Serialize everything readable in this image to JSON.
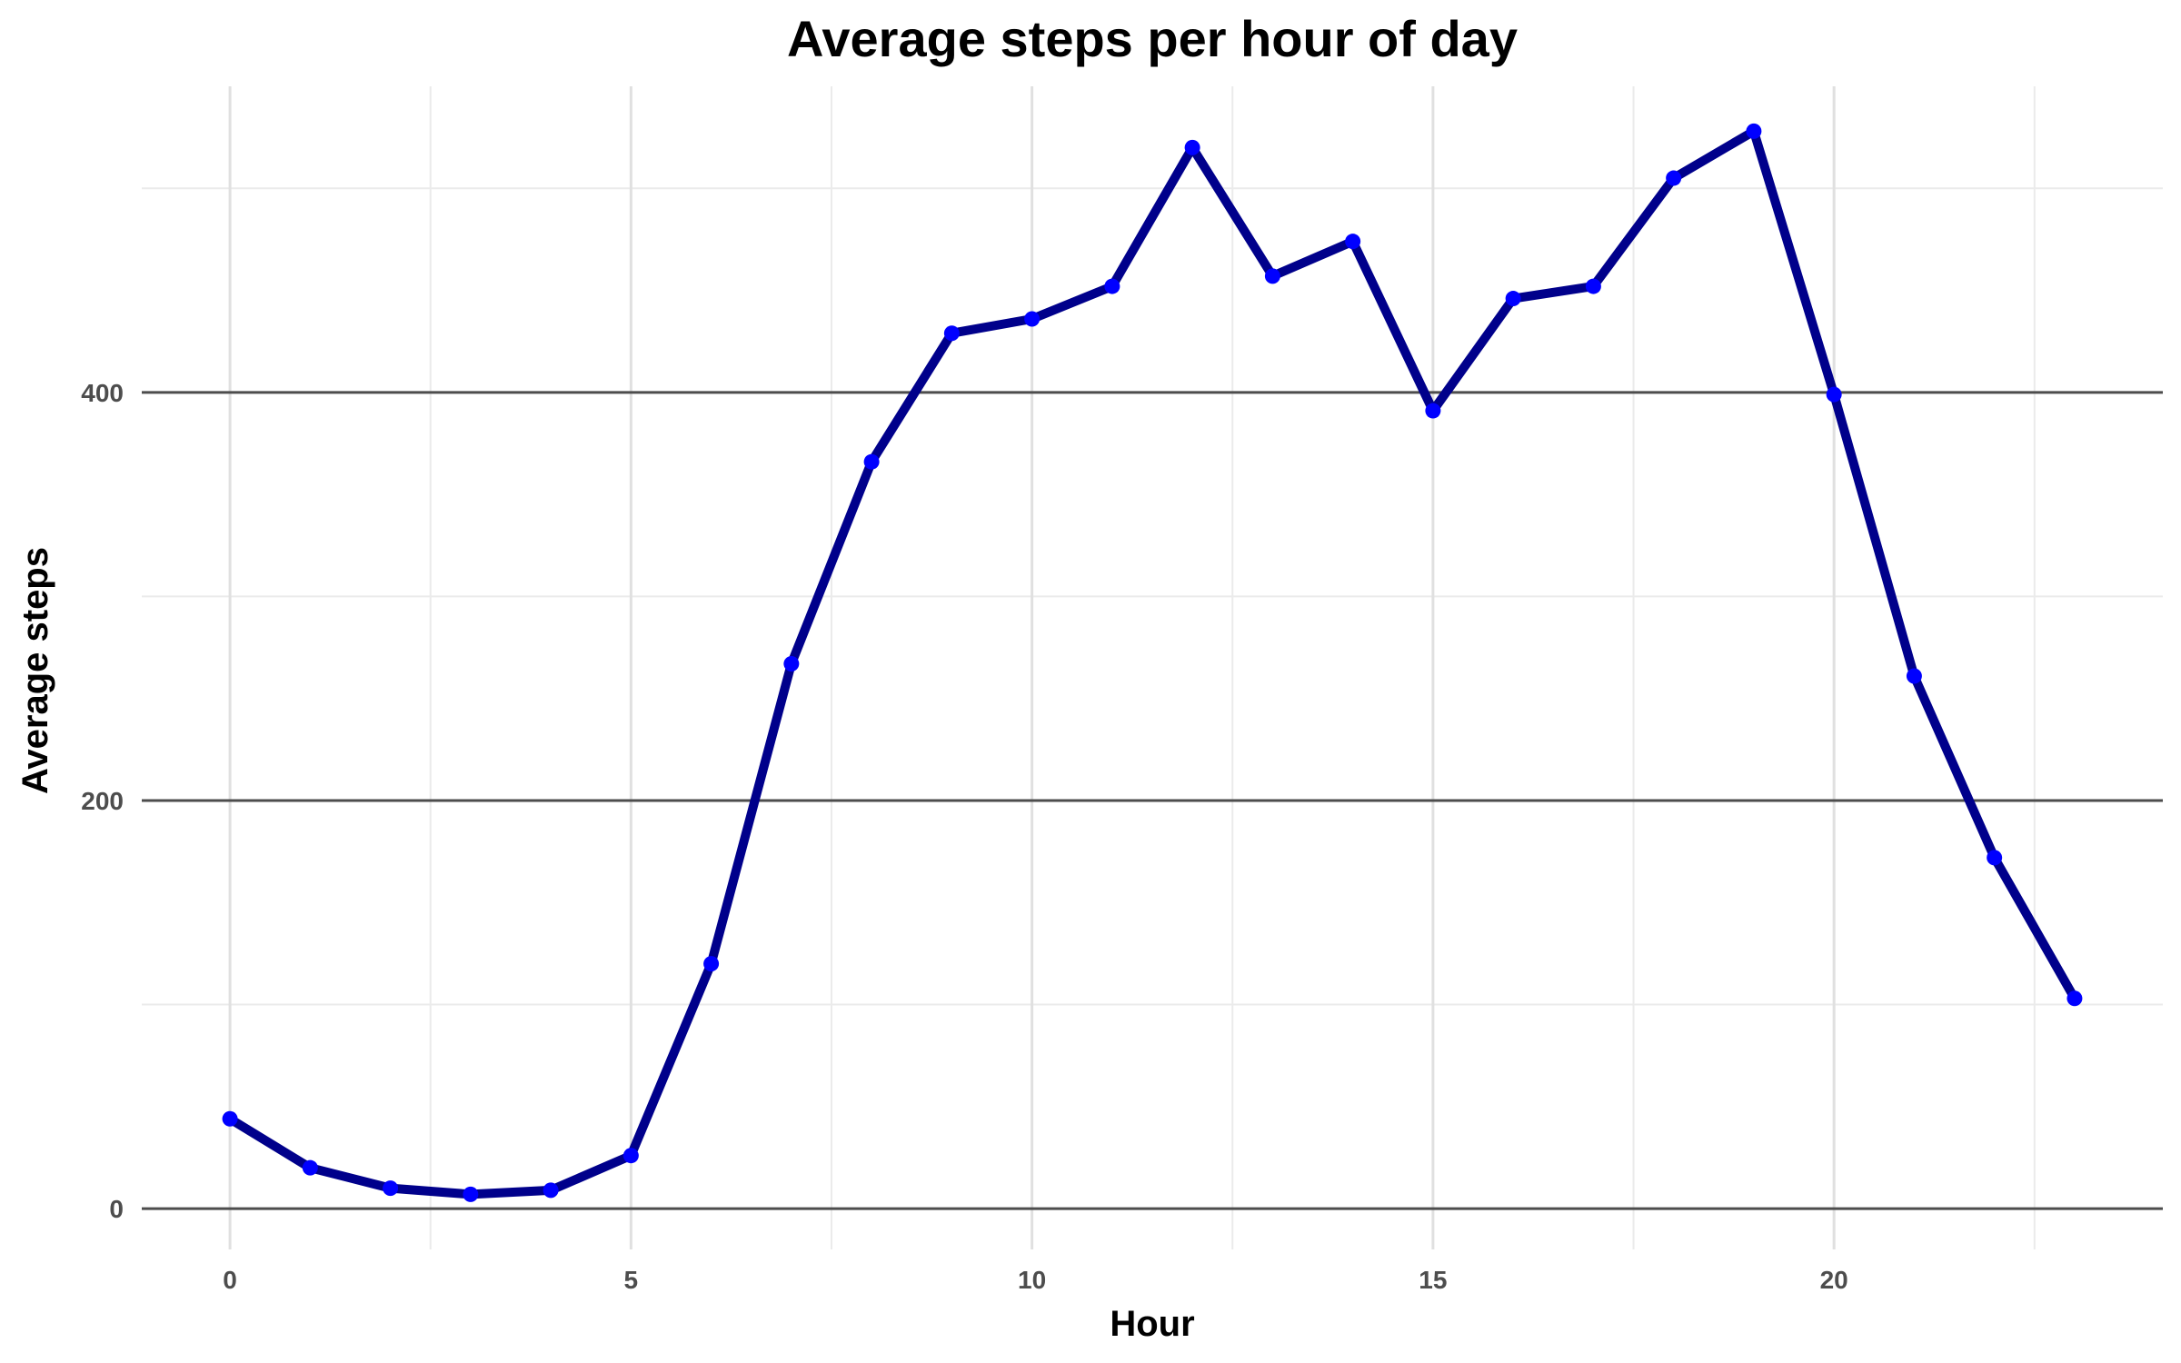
{
  "chart_data": {
    "type": "line",
    "title": "Average steps per hour of day",
    "xlabel": "Hour",
    "ylabel": "Average steps",
    "xlim": [
      -1.1,
      24.1
    ],
    "ylim": [
      -20,
      550
    ],
    "x_ticks": [
      0,
      5,
      10,
      15,
      20
    ],
    "x_tick_labels": [
      "0",
      "5",
      "10",
      "15",
      "20"
    ],
    "x_minor_ticks": [
      2.5,
      7.5,
      12.5,
      17.5,
      22.5
    ],
    "y_ticks": [
      0,
      200,
      400
    ],
    "y_tick_labels": [
      "0",
      "200",
      "400"
    ],
    "y_minor_ticks": [
      100,
      300,
      500
    ],
    "grid": true,
    "series": [
      {
        "x": [
          0,
          1,
          2,
          3,
          4,
          5,
          6,
          7,
          8,
          9,
          10,
          11,
          12,
          13,
          14,
          15,
          16,
          17,
          18,
          19,
          20,
          21,
          22,
          23
        ],
        "y": [
          44,
          20,
          10,
          7,
          9,
          26,
          120,
          267,
          366,
          429,
          436,
          452,
          520,
          457,
          474,
          391,
          446,
          452,
          505,
          528,
          399,
          261,
          172,
          103
        ],
        "line_color": "#00008B",
        "point_color": "#0000FF"
      }
    ]
  }
}
